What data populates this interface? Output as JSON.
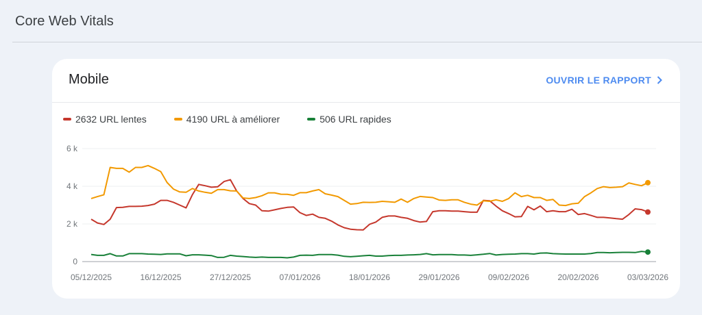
{
  "header": {
    "title": "Core Web Vitals"
  },
  "card": {
    "title": "Mobile",
    "open_report_label": "OUVRIR LE RAPPORT",
    "open_report_icon": "chevron-right-icon"
  },
  "legend": [
    {
      "label": "2632 URL lentes",
      "color": "#c5372c"
    },
    {
      "label": "4190 URL à améliorer",
      "color": "#f29900"
    },
    {
      "label": "506 URL rapides",
      "color": "#188038"
    }
  ],
  "chart_data": {
    "type": "line",
    "x_start": "05/12/2025",
    "x_end": "03/03/2026",
    "x_ticks": [
      "05/12/2025",
      "16/12/2025",
      "27/12/2025",
      "07/01/2026",
      "18/01/2026",
      "29/01/2026",
      "09/02/2026",
      "20/02/2026",
      "03/03/2026"
    ],
    "y_ticks": [
      "0",
      "2 k",
      "4 k",
      "6 k"
    ],
    "ylim": [
      0,
      6000
    ],
    "grid": true,
    "legend_position": "top-left",
    "series": [
      {
        "name": "2632 URL lentes",
        "color": "#c5372c",
        "values": [
          2250,
          2050,
          1970,
          2250,
          2870,
          2880,
          2930,
          2930,
          2940,
          2980,
          3050,
          3250,
          3250,
          3150,
          3000,
          2850,
          3550,
          4100,
          4030,
          3950,
          3970,
          4250,
          4350,
          3750,
          3350,
          3080,
          3000,
          2700,
          2680,
          2750,
          2820,
          2880,
          2900,
          2600,
          2450,
          2520,
          2350,
          2300,
          2150,
          1950,
          1800,
          1720,
          1690,
          1680,
          1980,
          2100,
          2350,
          2420,
          2420,
          2350,
          2300,
          2180,
          2100,
          2130,
          2650,
          2700,
          2700,
          2680,
          2680,
          2650,
          2620,
          2620,
          3250,
          3230,
          2950,
          2700,
          2550,
          2380,
          2390,
          2930,
          2750,
          2950,
          2650,
          2700,
          2650,
          2650,
          2780,
          2500,
          2550,
          2450,
          2350,
          2350,
          2320,
          2280,
          2250,
          2500,
          2800,
          2760,
          2632
        ]
      },
      {
        "name": "4190 URL à améliorer",
        "color": "#f29900",
        "values": [
          3350,
          3450,
          3550,
          5000,
          4950,
          4950,
          4750,
          5000,
          5000,
          5100,
          4950,
          4780,
          4200,
          3850,
          3700,
          3680,
          3880,
          3750,
          3680,
          3630,
          3820,
          3820,
          3760,
          3750,
          3380,
          3350,
          3400,
          3500,
          3650,
          3650,
          3580,
          3570,
          3520,
          3660,
          3660,
          3750,
          3820,
          3600,
          3530,
          3450,
          3250,
          3050,
          3080,
          3150,
          3140,
          3150,
          3200,
          3180,
          3150,
          3320,
          3150,
          3350,
          3460,
          3430,
          3400,
          3270,
          3250,
          3280,
          3280,
          3150,
          3050,
          3000,
          3230,
          3200,
          3280,
          3200,
          3350,
          3650,
          3450,
          3520,
          3400,
          3400,
          3250,
          3300,
          3000,
          2980,
          3070,
          3100,
          3450,
          3650,
          3880,
          3980,
          3930,
          3950,
          3980,
          4180,
          4100,
          4030,
          4190
        ]
      },
      {
        "name": "506 URL rapides",
        "color": "#188038",
        "values": [
          380,
          330,
          330,
          420,
          300,
          300,
          420,
          420,
          420,
          400,
          390,
          380,
          410,
          410,
          410,
          310,
          360,
          360,
          340,
          320,
          220,
          230,
          330,
          290,
          270,
          240,
          220,
          240,
          220,
          220,
          220,
          200,
          240,
          330,
          340,
          330,
          370,
          370,
          370,
          340,
          280,
          260,
          280,
          310,
          330,
          290,
          290,
          320,
          330,
          330,
          350,
          360,
          380,
          420,
          360,
          370,
          370,
          370,
          350,
          350,
          330,
          360,
          390,
          430,
          350,
          380,
          390,
          400,
          420,
          420,
          400,
          450,
          460,
          420,
          410,
          400,
          400,
          400,
          400,
          430,
          480,
          480,
          470,
          480,
          490,
          490,
          480,
          540,
          506
        ]
      }
    ]
  }
}
